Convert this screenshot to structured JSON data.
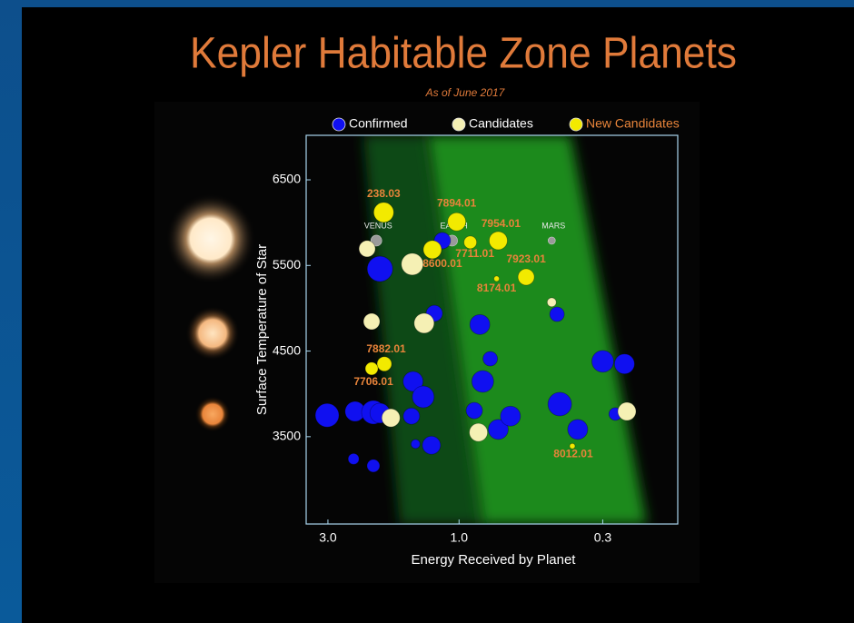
{
  "chart_data": {
    "type": "scatter",
    "title": "Kepler Habitable Zone Planets",
    "subtitle": "As of June 2017",
    "x_label": "Energy Received by Planet",
    "y_label": "Surface Temperature of Star",
    "xscale": "log",
    "xlim": [
      3.6,
      0.16
    ],
    "xticks": [
      {
        "value": 3,
        "label": "3.0"
      },
      {
        "value": 1,
        "label": "1.0"
      },
      0.3
    ],
    "ylim": [
      2480,
      7020
    ],
    "yticks": [
      3500,
      4500,
      5500,
      6500
    ],
    "grid": false,
    "legend": "top",
    "series": [
      {
        "name": "Confirmed",
        "color": "#1010f0",
        "label_color": "#ffffff",
        "x": [
          3.02,
          2.39,
          2.05,
          1.94,
          2.42,
          2.05,
          1.94,
          1.47,
          1.35,
          1.49,
          1.44,
          1.26,
          1.23,
          1.15,
          0.84,
          0.77,
          0.82,
          0.88,
          0.72,
          0.65,
          0.44,
          0.43,
          0.37,
          0.3,
          0.25,
          0.27
        ],
        "values": [
          3750,
          3795,
          3785,
          3775,
          3240,
          3160,
          5460,
          4145,
          3965,
          3740,
          3415,
          3400,
          4940,
          5790,
          4810,
          4410,
          4145,
          3805,
          3585,
          3740,
          4930,
          3880,
          3585,
          4380,
          4350,
          3765
        ],
        "sizes": [
          13,
          11,
          13,
          11,
          6,
          7,
          14,
          11,
          12,
          9,
          5,
          10,
          9,
          9,
          11,
          8,
          12,
          9,
          11,
          11,
          8,
          13,
          11,
          12,
          11,
          7
        ]
      },
      {
        "name": "Candidates",
        "color": "#f5f0b4",
        "label_color": "#ffffff",
        "x": [
          2.16,
          2.08,
          1.77,
          1.48,
          1.34,
          0.85,
          0.46,
          0.245
        ],
        "values": [
          5695,
          4845,
          3720,
          5515,
          4825,
          3550,
          5070,
          3795
        ],
        "sizes": [
          9,
          9,
          10,
          12,
          11,
          10,
          5,
          10
        ]
      },
      {
        "name": "New Candidates",
        "color": "#f2ea00",
        "label_color": "#e8843a",
        "x": [
          1.88,
          1.02,
          1.25,
          0.91,
          0.72,
          0.57,
          0.73,
          1.87,
          2.08,
          0.387
        ],
        "values": [
          6120,
          6010,
          5685,
          5770,
          5790,
          5365,
          5345,
          4350,
          4295,
          3390
        ],
        "sizes": [
          11,
          10,
          10,
          7,
          10,
          9,
          3,
          8,
          7,
          3
        ],
        "labels": [
          "238.03",
          "7894.01",
          "8600.01",
          "7711.01",
          "7954.01",
          "7923.01",
          "8174.01",
          "7882.01",
          "7706.01",
          "8012.01"
        ]
      }
    ],
    "annotations": [
      {
        "text": "VENUS",
        "x": 2.0,
        "y": 5790
      },
      {
        "text": "EARTH",
        "x": 1.06,
        "y": 5790
      },
      {
        "text": "MARS",
        "x": 0.46,
        "y": 5790
      }
    ]
  }
}
